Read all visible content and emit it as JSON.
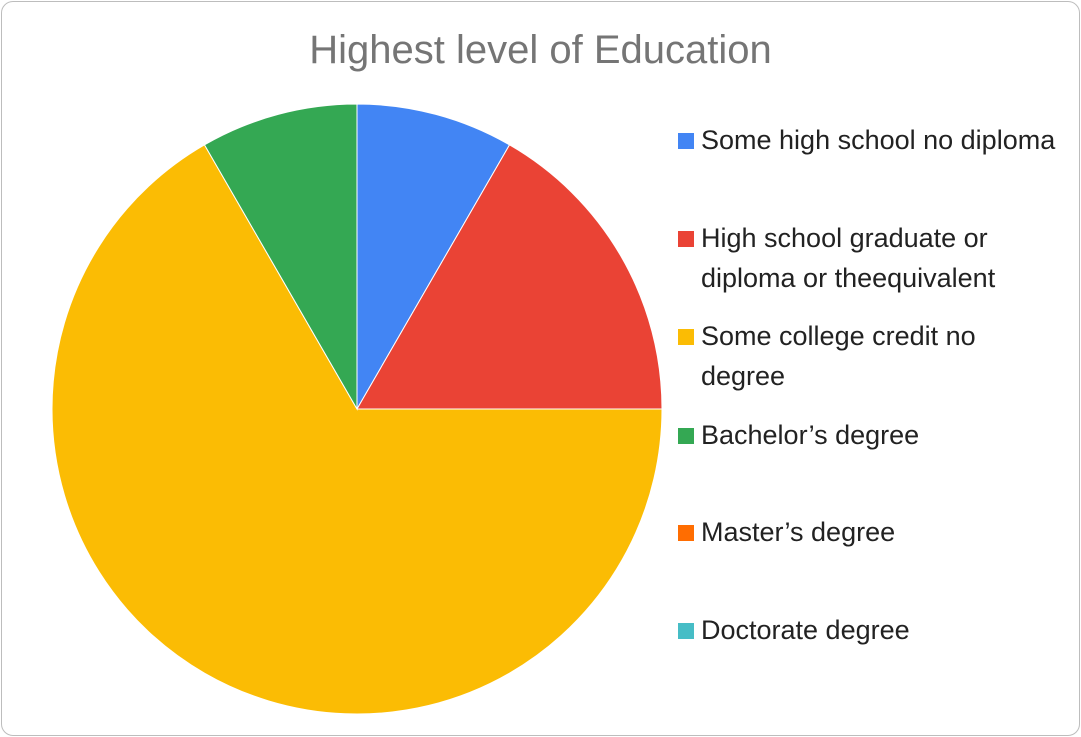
{
  "chart_data": {
    "type": "pie",
    "title": "Highest level of Education",
    "categories": [
      "Some high school no diploma",
      "High school graduate or diploma or theequivalent",
      "Some college credit no degree",
      "Bachelor’s degree",
      "Master’s degree",
      "Doctorate degree"
    ],
    "values": [
      1,
      2,
      8,
      1,
      0,
      0
    ],
    "colors": [
      "#4285F4",
      "#EA4335",
      "#FBBC04",
      "#34A853",
      "#FF6D01",
      "#46BDC6"
    ],
    "legend_position": "right"
  }
}
